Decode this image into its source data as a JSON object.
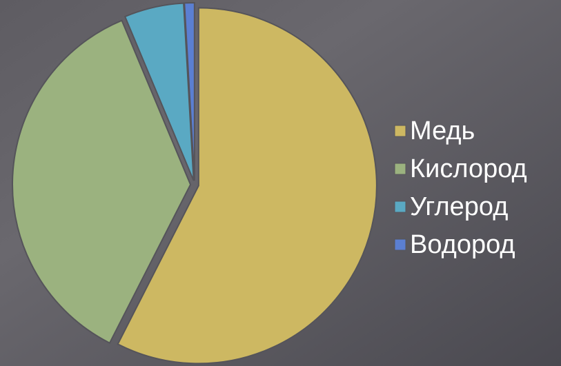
{
  "chart_data": {
    "type": "pie",
    "categories": [
      "Медь",
      "Кислород",
      "Углерод",
      "Водород"
    ],
    "values": [
      57.5,
      36.2,
      5.4,
      0.9
    ],
    "colors": [
      "#cdb862",
      "#9bb27f",
      "#5aa9c3",
      "#5b7fd2"
    ],
    "legend": "right"
  }
}
